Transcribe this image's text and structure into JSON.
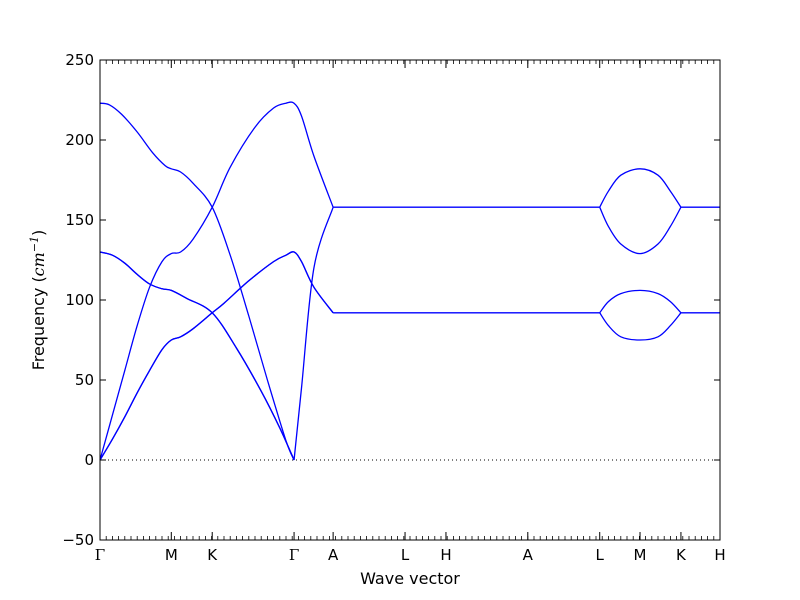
{
  "chart_data": {
    "type": "line",
    "xlabel": "Wave vector",
    "ylabel": {
      "prefix": "Frequency (",
      "unit_base": "cm",
      "unit_exp": "−1",
      "suffix": ")"
    },
    "ylim": [
      -50,
      250
    ],
    "yticks": [
      -50,
      0,
      50,
      100,
      150,
      200,
      250
    ],
    "ytick_labels": [
      "−50",
      "0",
      "50",
      "100",
      "150",
      "200",
      "250"
    ],
    "xlim": [
      0,
      1
    ],
    "xticks": [
      {
        "label": "Γ",
        "pos": 0.0
      },
      {
        "label": "M",
        "pos": 0.115
      },
      {
        "label": "K",
        "pos": 0.181
      },
      {
        "label": "Γ",
        "pos": 0.313
      },
      {
        "label": "A",
        "pos": 0.376
      },
      {
        "label": "L",
        "pos": 0.492
      },
      {
        "label": "H",
        "pos": 0.558
      },
      {
        "label": "A",
        "pos": 0.69
      },
      {
        "label": "L",
        "pos": 0.806
      },
      {
        "label": "M",
        "pos": 0.871
      },
      {
        "label": "K",
        "pos": 0.937
      },
      {
        "label": "H",
        "pos": 1.0
      }
    ],
    "zero_line": true,
    "line_color": "#0000ff",
    "series": [
      {
        "x": [
          0,
          0.02,
          0.04,
          0.06,
          0.08,
          0.1,
          0.115,
          0.13,
          0.15,
          0.181,
          0.2,
          0.24,
          0.28,
          0.3,
          0.313,
          0.325,
          0.345,
          0.376
        ],
        "y": [
          0,
          13,
          27,
          42,
          56,
          69,
          75,
          77,
          82,
          92,
          98,
          112,
          124,
          128,
          130,
          124,
          108,
          92
        ]
      },
      {
        "x": [
          0,
          0.02,
          0.04,
          0.06,
          0.08,
          0.1,
          0.115,
          0.13,
          0.15,
          0.181,
          0.2,
          0.24,
          0.28,
          0.3,
          0.313,
          0.325,
          0.345,
          0.376
        ],
        "y": [
          0,
          13,
          27,
          42,
          56,
          69,
          75,
          77,
          82,
          92,
          98,
          112,
          124,
          128,
          130,
          124,
          108,
          92
        ]
      },
      {
        "x": [
          0,
          0.02,
          0.04,
          0.06,
          0.08,
          0.1,
          0.115,
          0.14,
          0.181,
          0.22,
          0.26,
          0.29,
          0.313
        ],
        "y": [
          130,
          128,
          123,
          116,
          110,
          107,
          106,
          101,
          92,
          70,
          43,
          20,
          0
        ]
      },
      {
        "x": [
          0,
          0.02,
          0.04,
          0.06,
          0.08,
          0.1,
          0.115,
          0.14,
          0.181,
          0.22,
          0.26,
          0.29,
          0.313
        ],
        "y": [
          130,
          128,
          123,
          116,
          110,
          107,
          106,
          101,
          92,
          70,
          43,
          20,
          0
        ]
      },
      {
        "x": [
          0,
          0.02,
          0.04,
          0.06,
          0.08,
          0.1,
          0.115,
          0.13,
          0.15,
          0.181,
          0.21,
          0.25,
          0.28,
          0.3,
          0.313,
          0.325,
          0.345,
          0.376
        ],
        "y": [
          0,
          28,
          56,
          84,
          108,
          124,
          129,
          130,
          138,
          158,
          183,
          208,
          220,
          223,
          223,
          215,
          190,
          158
        ]
      },
      {
        "x": [
          0,
          0.015,
          0.035,
          0.06,
          0.085,
          0.105,
          0.115,
          0.13,
          0.15,
          0.181,
          0.21,
          0.24,
          0.27,
          0.3,
          0.313
        ],
        "y": [
          223,
          222,
          216,
          205,
          192,
          184,
          182,
          180,
          173,
          158,
          128,
          90,
          50,
          12,
          0
        ]
      },
      {
        "x": [
          0.313,
          0.325,
          0.345,
          0.376
        ],
        "y": [
          0,
          45,
          120,
          158
        ]
      },
      {
        "x": [
          0.376,
          0.806
        ],
        "y": [
          158,
          158
        ]
      },
      {
        "x": [
          0.376,
          0.806
        ],
        "y": [
          92,
          92
        ]
      },
      {
        "x": [
          0.806,
          0.82,
          0.84,
          0.871,
          0.9,
          0.92,
          0.937
        ],
        "y": [
          158,
          168,
          178,
          182,
          178,
          168,
          158
        ]
      },
      {
        "x": [
          0.806,
          0.82,
          0.84,
          0.871,
          0.9,
          0.92,
          0.937
        ],
        "y": [
          158,
          146,
          135,
          129,
          135,
          146,
          158
        ]
      },
      {
        "x": [
          0.806,
          0.82,
          0.84,
          0.871,
          0.9,
          0.92,
          0.937
        ],
        "y": [
          92,
          99,
          104,
          106,
          104,
          99,
          92
        ]
      },
      {
        "x": [
          0.806,
          0.82,
          0.84,
          0.871,
          0.9,
          0.92,
          0.937
        ],
        "y": [
          92,
          84,
          77,
          75,
          77,
          84,
          92
        ]
      },
      {
        "x": [
          0.937,
          1.0
        ],
        "y": [
          158,
          158
        ]
      },
      {
        "x": [
          0.937,
          1.0
        ],
        "y": [
          92,
          92
        ]
      }
    ]
  }
}
